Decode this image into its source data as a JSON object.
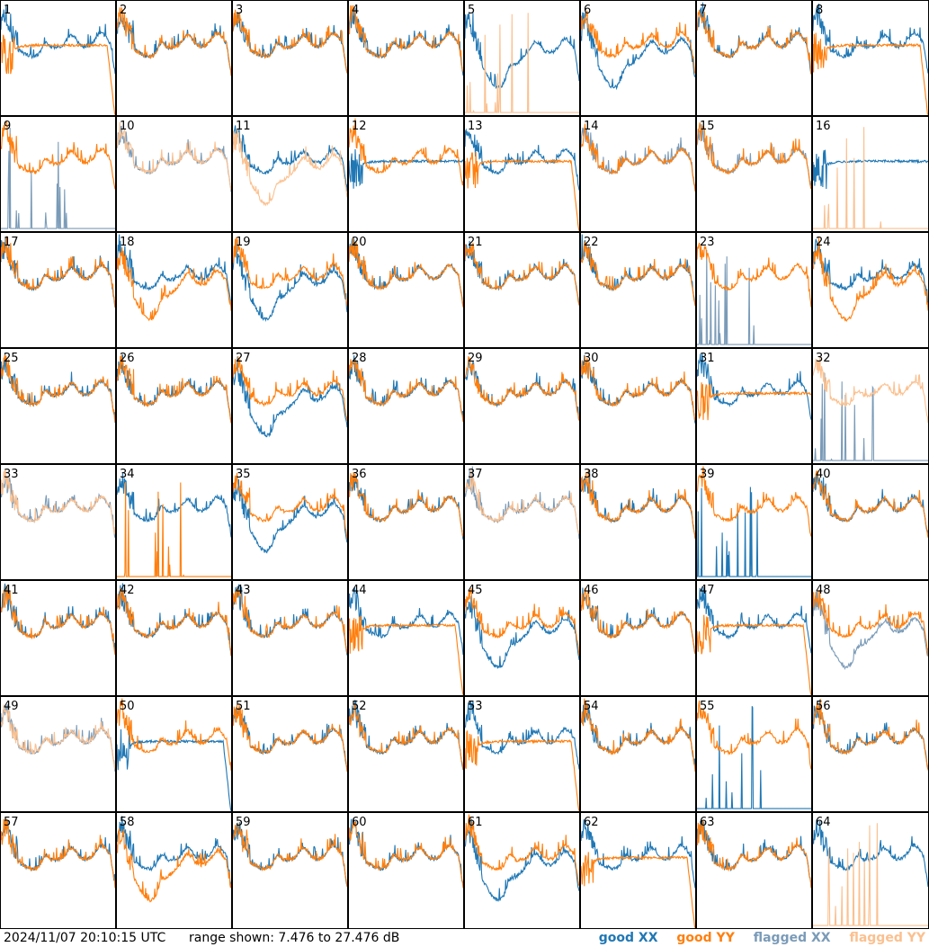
{
  "footer": {
    "timestamp": "2024/11/07 20:10:15 UTC",
    "range_text": "range shown: 7.476 to 27.476 dB",
    "legend": {
      "good_xx": "good XX",
      "good_yy": "good YY",
      "flagged_xx": "flagged XX",
      "flagged_yy": "flagged YY"
    }
  },
  "colors": {
    "good_xx": "#1f77b4",
    "good_yy": "#ff7f0e",
    "flagged_xx": "#7a9bb8",
    "flagged_yy": "#fbc08f"
  },
  "chart_data": {
    "type": "line",
    "layout": "8x8 grid of small multiples",
    "y_range_db": [
      7.476,
      27.476
    ],
    "panels": [
      {
        "ant": "1",
        "xx": "good",
        "yy": "good",
        "xx_shape": "normal",
        "yy_shape": "plateau-drop"
      },
      {
        "ant": "2",
        "xx": "good",
        "yy": "good",
        "xx_shape": "normal",
        "yy_shape": "normal"
      },
      {
        "ant": "3",
        "xx": "good",
        "yy": "good",
        "xx_shape": "normal",
        "yy_shape": "normal"
      },
      {
        "ant": "4",
        "xx": "good",
        "yy": "good",
        "xx_shape": "normal",
        "yy_shape": "normal"
      },
      {
        "ant": "5",
        "xx": "good",
        "yy": "flagged",
        "xx_shape": "dip",
        "yy_shape": "dead"
      },
      {
        "ant": "6",
        "xx": "good",
        "yy": "good",
        "xx_shape": "dip",
        "yy_shape": "normal"
      },
      {
        "ant": "7",
        "xx": "good",
        "yy": "good",
        "xx_shape": "normal",
        "yy_shape": "normal"
      },
      {
        "ant": "8",
        "xx": "good",
        "yy": "good",
        "xx_shape": "normal",
        "yy_shape": "plateau-drop"
      },
      {
        "ant": "9",
        "xx": "flagged",
        "yy": "good",
        "xx_shape": "dead",
        "yy_shape": "normal"
      },
      {
        "ant": "10",
        "xx": "flagged",
        "yy": "flagged",
        "xx_shape": "normal",
        "yy_shape": "normal"
      },
      {
        "ant": "11",
        "xx": "good",
        "yy": "flagged",
        "xx_shape": "normal",
        "yy_shape": "dip"
      },
      {
        "ant": "12",
        "xx": "good",
        "yy": "good",
        "xx_shape": "plateau",
        "yy_shape": "normal"
      },
      {
        "ant": "13",
        "xx": "good",
        "yy": "good",
        "xx_shape": "normal",
        "yy_shape": "plateau-drop"
      },
      {
        "ant": "14",
        "xx": "flagged",
        "yy": "good",
        "xx_shape": "normal",
        "yy_shape": "normal"
      },
      {
        "ant": "15",
        "xx": "flagged",
        "yy": "good",
        "xx_shape": "normal",
        "yy_shape": "normal"
      },
      {
        "ant": "16",
        "xx": "good",
        "yy": "flagged",
        "xx_shape": "plateau",
        "yy_shape": "dead"
      },
      {
        "ant": "17",
        "xx": "good",
        "yy": "good",
        "xx_shape": "normal",
        "yy_shape": "normal"
      },
      {
        "ant": "18",
        "xx": "good",
        "yy": "good",
        "xx_shape": "normal",
        "yy_shape": "dip"
      },
      {
        "ant": "19",
        "xx": "good",
        "yy": "good",
        "xx_shape": "dip",
        "yy_shape": "normal"
      },
      {
        "ant": "20",
        "xx": "good",
        "yy": "good",
        "xx_shape": "normal",
        "yy_shape": "normal"
      },
      {
        "ant": "21",
        "xx": "good",
        "yy": "good",
        "xx_shape": "normal",
        "yy_shape": "normal"
      },
      {
        "ant": "22",
        "xx": "good",
        "yy": "good",
        "xx_shape": "normal",
        "yy_shape": "normal"
      },
      {
        "ant": "23",
        "xx": "flagged",
        "yy": "good",
        "xx_shape": "dead",
        "yy_shape": "normal"
      },
      {
        "ant": "24",
        "xx": "good",
        "yy": "good",
        "xx_shape": "normal",
        "yy_shape": "dip"
      },
      {
        "ant": "25",
        "xx": "good",
        "yy": "good",
        "xx_shape": "normal",
        "yy_shape": "normal"
      },
      {
        "ant": "26",
        "xx": "good",
        "yy": "good",
        "xx_shape": "normal",
        "yy_shape": "normal"
      },
      {
        "ant": "27",
        "xx": "good",
        "yy": "good",
        "xx_shape": "dip",
        "yy_shape": "normal"
      },
      {
        "ant": "28",
        "xx": "good",
        "yy": "good",
        "xx_shape": "normal",
        "yy_shape": "normal"
      },
      {
        "ant": "29",
        "xx": "good",
        "yy": "good",
        "xx_shape": "normal",
        "yy_shape": "normal"
      },
      {
        "ant": "30",
        "xx": "good",
        "yy": "good",
        "xx_shape": "normal",
        "yy_shape": "normal"
      },
      {
        "ant": "31",
        "xx": "good",
        "yy": "good",
        "xx_shape": "normal",
        "yy_shape": "plateau"
      },
      {
        "ant": "32",
        "xx": "flagged",
        "yy": "flagged",
        "xx_shape": "dead",
        "yy_shape": "normal"
      },
      {
        "ant": "33",
        "xx": "flagged",
        "yy": "flagged",
        "xx_shape": "normal",
        "yy_shape": "normal"
      },
      {
        "ant": "34",
        "xx": "good",
        "yy": "good",
        "xx_shape": "normal",
        "yy_shape": "dead"
      },
      {
        "ant": "35",
        "xx": "good",
        "yy": "good",
        "xx_shape": "dip",
        "yy_shape": "normal"
      },
      {
        "ant": "36",
        "xx": "good",
        "yy": "good",
        "xx_shape": "normal",
        "yy_shape": "normal"
      },
      {
        "ant": "37",
        "xx": "flagged",
        "yy": "flagged",
        "xx_shape": "normal",
        "yy_shape": "normal"
      },
      {
        "ant": "38",
        "xx": "good",
        "yy": "good",
        "xx_shape": "normal",
        "yy_shape": "normal"
      },
      {
        "ant": "39",
        "xx": "good",
        "yy": "good",
        "xx_shape": "dead",
        "yy_shape": "normal"
      },
      {
        "ant": "40",
        "xx": "good",
        "yy": "good",
        "xx_shape": "normal",
        "yy_shape": "normal"
      },
      {
        "ant": "41",
        "xx": "good",
        "yy": "good",
        "xx_shape": "normal",
        "yy_shape": "normal"
      },
      {
        "ant": "42",
        "xx": "good",
        "yy": "good",
        "xx_shape": "normal",
        "yy_shape": "normal"
      },
      {
        "ant": "43",
        "xx": "good",
        "yy": "good",
        "xx_shape": "normal",
        "yy_shape": "normal"
      },
      {
        "ant": "44",
        "xx": "good",
        "yy": "good",
        "xx_shape": "normal",
        "yy_shape": "plateau-drop"
      },
      {
        "ant": "45",
        "xx": "good",
        "yy": "good",
        "xx_shape": "dip",
        "yy_shape": "normal"
      },
      {
        "ant": "46",
        "xx": "good",
        "yy": "good",
        "xx_shape": "normal",
        "yy_shape": "normal"
      },
      {
        "ant": "47",
        "xx": "good",
        "yy": "good",
        "xx_shape": "normal",
        "yy_shape": "plateau-drop"
      },
      {
        "ant": "48",
        "xx": "flagged",
        "yy": "good",
        "xx_shape": "dip",
        "yy_shape": "normal"
      },
      {
        "ant": "49",
        "xx": "flagged",
        "yy": "flagged",
        "xx_shape": "normal",
        "yy_shape": "normal"
      },
      {
        "ant": "50",
        "xx": "good",
        "yy": "good",
        "xx_shape": "plateau-drop",
        "yy_shape": "normal"
      },
      {
        "ant": "51",
        "xx": "good",
        "yy": "good",
        "xx_shape": "normal",
        "yy_shape": "normal"
      },
      {
        "ant": "52",
        "xx": "good",
        "yy": "good",
        "xx_shape": "normal",
        "yy_shape": "normal"
      },
      {
        "ant": "53",
        "xx": "good",
        "yy": "good",
        "xx_shape": "normal",
        "yy_shape": "plateau-drop"
      },
      {
        "ant": "54",
        "xx": "good",
        "yy": "good",
        "xx_shape": "normal",
        "yy_shape": "normal"
      },
      {
        "ant": "55",
        "xx": "good",
        "yy": "good",
        "xx_shape": "dead",
        "yy_shape": "normal"
      },
      {
        "ant": "56",
        "xx": "good",
        "yy": "good",
        "xx_shape": "normal",
        "yy_shape": "normal"
      },
      {
        "ant": "57",
        "xx": "good",
        "yy": "good",
        "xx_shape": "normal",
        "yy_shape": "normal"
      },
      {
        "ant": "58",
        "xx": "good",
        "yy": "good",
        "xx_shape": "normal",
        "yy_shape": "dip"
      },
      {
        "ant": "59",
        "xx": "good",
        "yy": "good",
        "xx_shape": "normal",
        "yy_shape": "normal"
      },
      {
        "ant": "60",
        "xx": "good",
        "yy": "good",
        "xx_shape": "normal",
        "yy_shape": "normal"
      },
      {
        "ant": "61",
        "xx": "good",
        "yy": "good",
        "xx_shape": "dip",
        "yy_shape": "normal"
      },
      {
        "ant": "62",
        "xx": "good",
        "yy": "good",
        "xx_shape": "normal",
        "yy_shape": "plateau-drop"
      },
      {
        "ant": "63",
        "xx": "good",
        "yy": "good",
        "xx_shape": "normal",
        "yy_shape": "normal"
      },
      {
        "ant": "64",
        "xx": "good",
        "yy": "flagged",
        "xx_shape": "normal",
        "yy_shape": "dead"
      }
    ]
  }
}
